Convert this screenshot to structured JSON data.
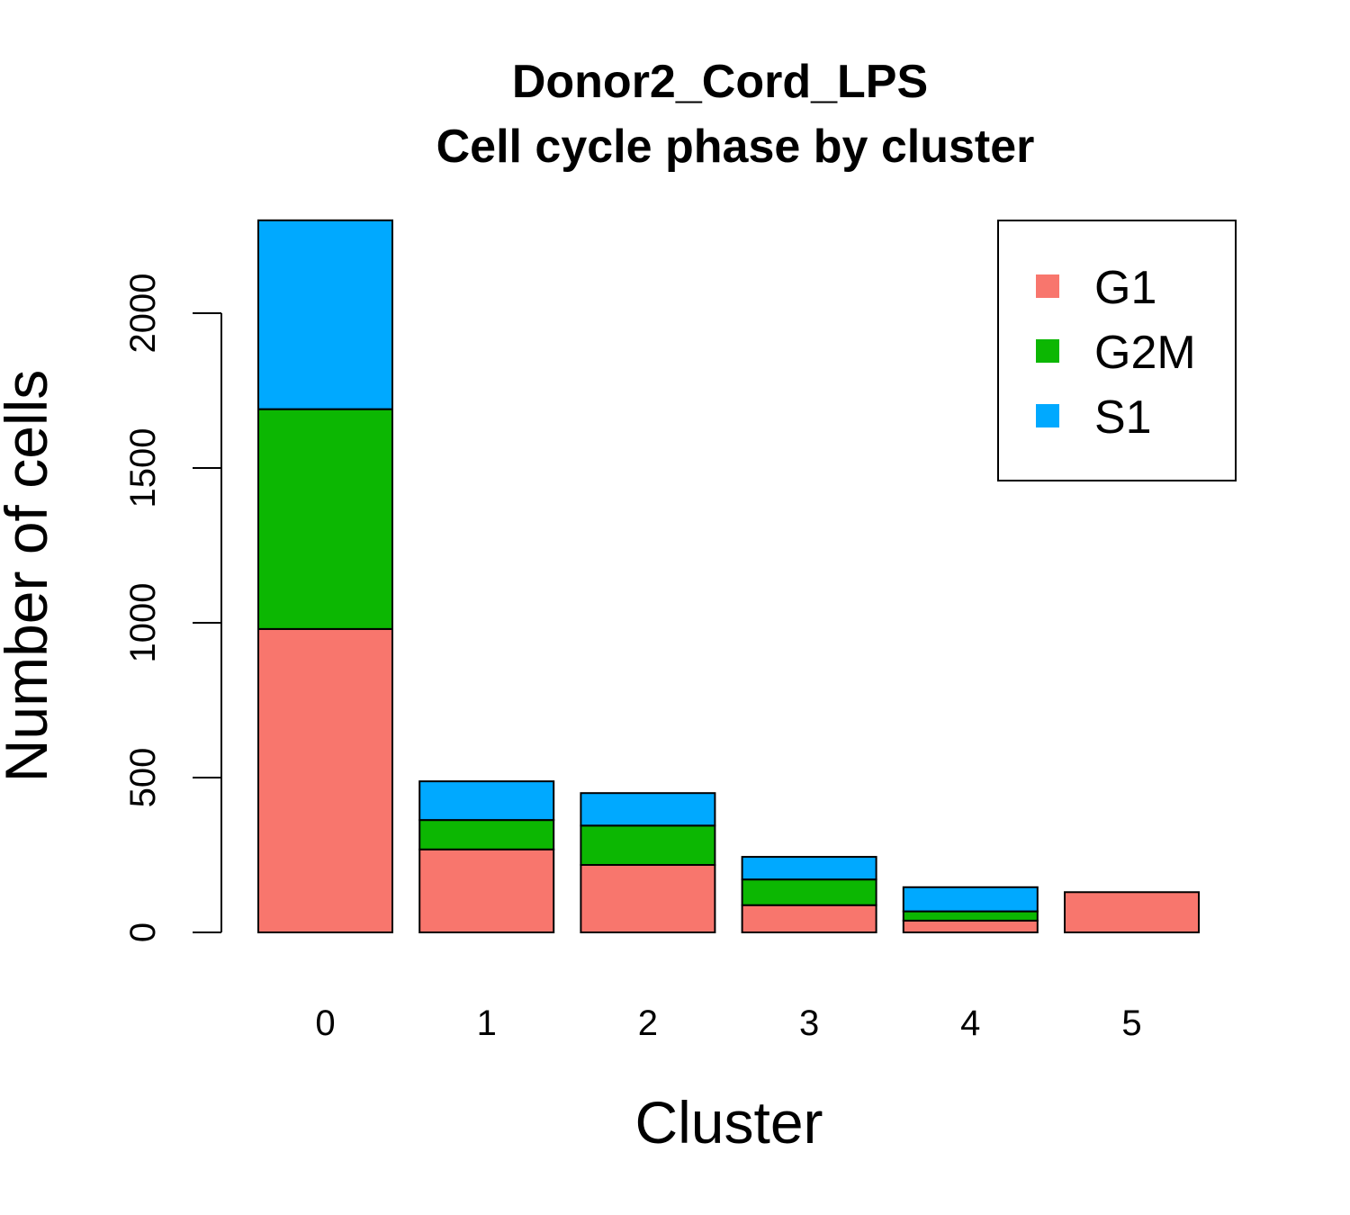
{
  "chart_data": {
    "type": "bar",
    "stacked": true,
    "title": "Donor2_Cord_LPS",
    "subtitle": "Cell cycle phase by cluster",
    "xlabel": "Cluster",
    "ylabel": "Number of cells",
    "categories": [
      "0",
      "1",
      "2",
      "3",
      "4",
      "5"
    ],
    "series": [
      {
        "name": "G1",
        "color": "#F8766D",
        "values": [
          980,
          268,
          218,
          88,
          38,
          130
        ]
      },
      {
        "name": "G2M",
        "color": "#0CB702",
        "values": [
          710,
          95,
          127,
          83,
          30,
          0
        ]
      },
      {
        "name": "S1",
        "color": "#00A9FF",
        "values": [
          610,
          125,
          105,
          73,
          78,
          0
        ]
      }
    ],
    "yticks": [
      0,
      500,
      1000,
      1500,
      2000
    ],
    "ylim": [
      0,
      2300
    ],
    "grid": false,
    "legend_position": "top-right"
  }
}
